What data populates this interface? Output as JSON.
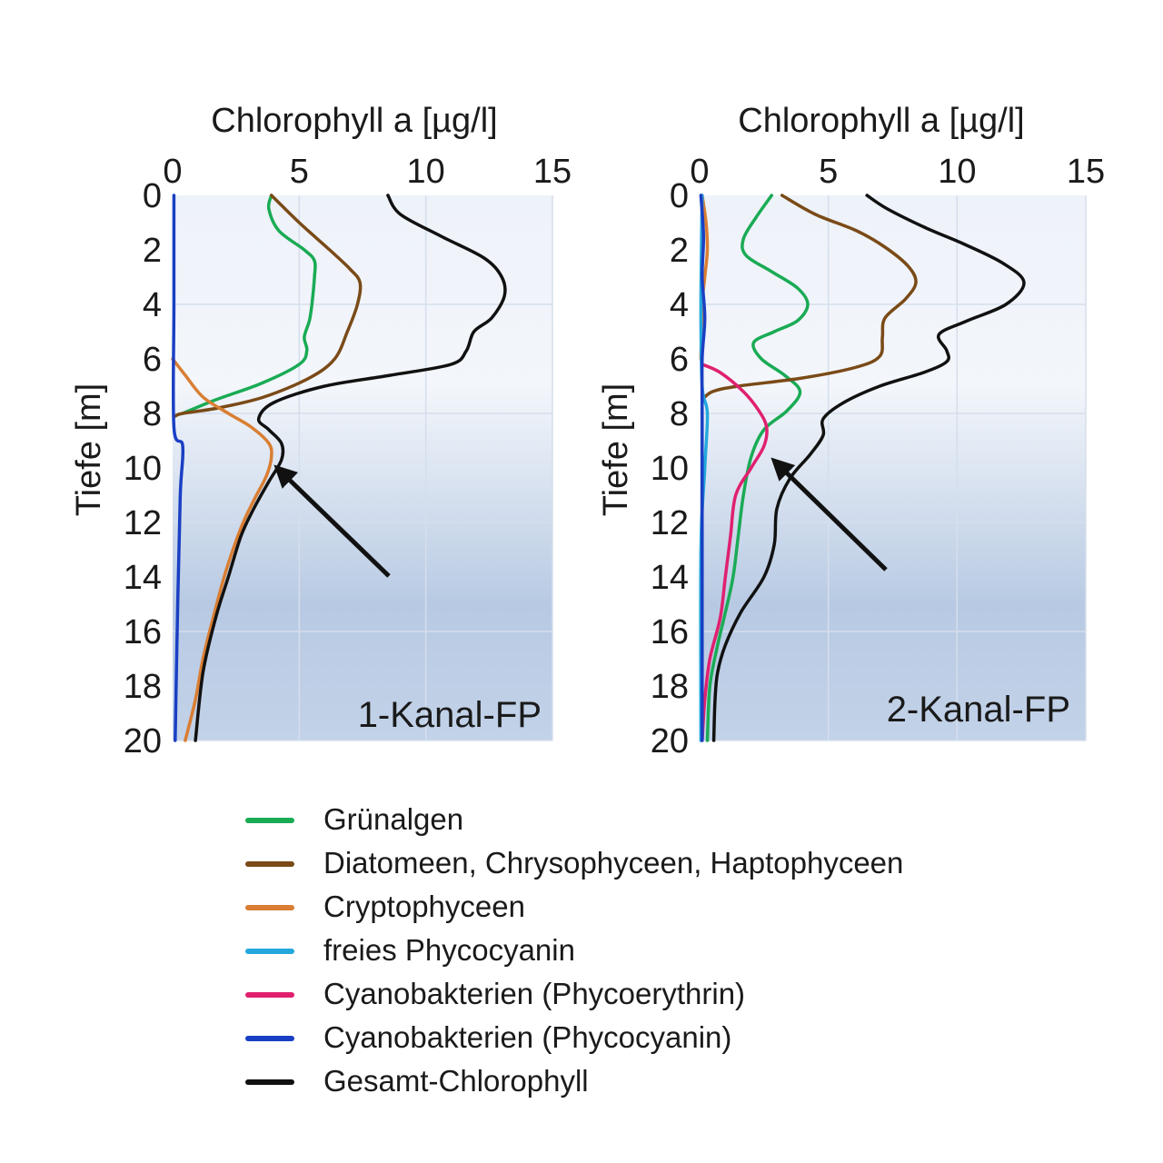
{
  "chart_data": [
    {
      "type": "line",
      "title": "",
      "xlabel": "Chlorophyll a [µg/l]",
      "ylabel": "Tiefe [m]",
      "xlim": [
        0,
        15
      ],
      "ylim": [
        20,
        0
      ],
      "xticks": [
        "0",
        "5",
        "10",
        "15"
      ],
      "yticks": [
        "0",
        "2",
        "4",
        "6",
        "8",
        "10",
        "12",
        "14",
        "16",
        "18",
        "20"
      ],
      "grid": true,
      "panel_label": "1-Kanal-FP",
      "annotation": "arrow pointing to the Cryptophyceen / Gesamt-Chlorophyll peak at about 10 m depth",
      "series": [
        {
          "name": "Grünalgen",
          "color": "#1aab55",
          "points": [
            [
              3.9,
              0
            ],
            [
              3.8,
              0.5
            ],
            [
              4.2,
              1.3
            ],
            [
              5.2,
              2
            ],
            [
              5.6,
              2.4
            ],
            [
              5.6,
              3
            ],
            [
              5.5,
              4
            ],
            [
              5.4,
              4.6
            ],
            [
              5.2,
              5.2
            ],
            [
              5.3,
              5.7
            ],
            [
              5.0,
              6.2
            ],
            [
              3.5,
              6.9
            ],
            [
              1.7,
              7.5
            ],
            [
              0.4,
              8.0
            ]
          ]
        },
        {
          "name": "Diatomeen, Chrysophyceen, Haptophyceen",
          "color": "#7a4a17",
          "points": [
            [
              3.9,
              0
            ],
            [
              5.0,
              1
            ],
            [
              6.2,
              2
            ],
            [
              7.0,
              2.7
            ],
            [
              7.4,
              3.2
            ],
            [
              7.3,
              4
            ],
            [
              6.9,
              5
            ],
            [
              6.4,
              6
            ],
            [
              5.4,
              6.7
            ],
            [
              3.6,
              7.4
            ],
            [
              1.8,
              7.8
            ],
            [
              0.4,
              8.0
            ],
            [
              0.1,
              8.1
            ]
          ]
        },
        {
          "name": "Cryptophyceen",
          "color": "#d97e33",
          "points": [
            [
              0,
              6.0
            ],
            [
              0.5,
              6.6
            ],
            [
              1.2,
              7.4
            ],
            [
              2.2,
              8.0
            ],
            [
              3.1,
              8.5
            ],
            [
              3.8,
              9.1
            ],
            [
              3.9,
              9.6
            ],
            [
              3.7,
              10.3
            ],
            [
              3.2,
              11.2
            ],
            [
              2.7,
              12.2
            ],
            [
              2.1,
              13.8
            ],
            [
              1.6,
              15.5
            ],
            [
              1.2,
              17
            ],
            [
              0.9,
              18.5
            ],
            [
              0.5,
              20
            ]
          ]
        },
        {
          "name": "Cyanobakterien (Phycocyanin)",
          "color": "#1a3fc4",
          "points": [
            [
              0.05,
              0
            ],
            [
              0.05,
              4
            ],
            [
              0.05,
              8.5
            ],
            [
              0.4,
              9.2
            ],
            [
              0.3,
              11
            ],
            [
              0.2,
              15
            ],
            [
              0.1,
              20
            ]
          ]
        },
        {
          "name": "Gesamt-Chlorophyll",
          "color": "#111111",
          "points": [
            [
              8.5,
              0
            ],
            [
              9.0,
              0.7
            ],
            [
              10.6,
              1.5
            ],
            [
              12.3,
              2.3
            ],
            [
              13.0,
              3.0
            ],
            [
              13.1,
              3.7
            ],
            [
              12.6,
              4.5
            ],
            [
              11.9,
              5.0
            ],
            [
              11.6,
              5.7
            ],
            [
              11.0,
              6.2
            ],
            [
              8.6,
              6.6
            ],
            [
              6.0,
              7.0
            ],
            [
              4.0,
              7.6
            ],
            [
              3.4,
              8.2
            ],
            [
              3.8,
              8.6
            ],
            [
              4.3,
              9.1
            ],
            [
              4.3,
              9.7
            ],
            [
              3.8,
              10.5
            ],
            [
              3.2,
              11.5
            ],
            [
              2.7,
              12.5
            ],
            [
              2.2,
              14
            ],
            [
              1.7,
              15.5
            ],
            [
              1.2,
              17.5
            ],
            [
              0.9,
              20
            ]
          ]
        }
      ]
    },
    {
      "type": "line",
      "title": "",
      "xlabel": "Chlorophyll a [µg/l]",
      "ylabel": "Tiefe [m]",
      "xlim": [
        0,
        15
      ],
      "ylim": [
        20,
        0
      ],
      "xticks": [
        "0",
        "5",
        "10",
        "15"
      ],
      "yticks": [
        "0",
        "2",
        "4",
        "6",
        "8",
        "10",
        "12",
        "14",
        "16",
        "18",
        "20"
      ],
      "grid": true,
      "panel_label": "2-Kanal-FP",
      "annotation": "arrow pointing to the Cyanobakterien (Phycoerythrin) peak at about 9 m depth",
      "series": [
        {
          "name": "Grünalgen",
          "color": "#1aab55",
          "points": [
            [
              2.8,
              0
            ],
            [
              2.2,
              0.8
            ],
            [
              1.7,
              1.6
            ],
            [
              1.8,
              2.2
            ],
            [
              2.8,
              2.8
            ],
            [
              3.8,
              3.4
            ],
            [
              4.2,
              4.0
            ],
            [
              3.8,
              4.6
            ],
            [
              2.9,
              5.0
            ],
            [
              2.1,
              5.4
            ],
            [
              2.4,
              6.0
            ],
            [
              3.3,
              6.6
            ],
            [
              3.9,
              7.2
            ],
            [
              3.4,
              7.9
            ],
            [
              2.5,
              8.6
            ],
            [
              2.0,
              9.6
            ],
            [
              1.7,
              11
            ],
            [
              1.5,
              12.5
            ],
            [
              1.3,
              14
            ],
            [
              1.0,
              15.3
            ],
            [
              0.7,
              16.5
            ],
            [
              0.4,
              18
            ],
            [
              0.3,
              20
            ]
          ]
        },
        {
          "name": "Diatomeen, Chrysophyceen, Haptophyceen",
          "color": "#7a4a17",
          "points": [
            [
              3.2,
              0
            ],
            [
              4.5,
              0.7
            ],
            [
              6.1,
              1.3
            ],
            [
              7.2,
              1.9
            ],
            [
              8.1,
              2.6
            ],
            [
              8.4,
              3.2
            ],
            [
              8.0,
              3.8
            ],
            [
              7.2,
              4.5
            ],
            [
              7.1,
              5.2
            ],
            [
              7.0,
              5.9
            ],
            [
              6.1,
              6.3
            ],
            [
              4.0,
              6.7
            ],
            [
              1.5,
              7.0
            ],
            [
              0.5,
              7.2
            ],
            [
              0.1,
              7.5
            ]
          ]
        },
        {
          "name": "Cryptophyceen",
          "color": "#d97e33",
          "points": [
            [
              0.1,
              0
            ],
            [
              0.25,
              1
            ],
            [
              0.3,
              2
            ],
            [
              0.2,
              3
            ],
            [
              0.1,
              4
            ],
            [
              0.05,
              6
            ]
          ]
        },
        {
          "name": "freies Phycocyanin",
          "color": "#24a8dc",
          "points": [
            [
              0.1,
              0
            ],
            [
              0.05,
              4
            ],
            [
              0.1,
              7
            ],
            [
              0.3,
              8
            ],
            [
              0.2,
              10
            ],
            [
              0.05,
              13
            ],
            [
              0.05,
              20
            ]
          ]
        },
        {
          "name": "Cyanobakterien (Phycoerythrin)",
          "color": "#e0206f",
          "points": [
            [
              0.1,
              6.2
            ],
            [
              0.8,
              6.5
            ],
            [
              1.7,
              7.2
            ],
            [
              2.3,
              7.9
            ],
            [
              2.6,
              8.5
            ],
            [
              2.5,
              9.2
            ],
            [
              2.0,
              10
            ],
            [
              1.4,
              11
            ],
            [
              1.2,
              12.5
            ],
            [
              1.0,
              14
            ],
            [
              0.8,
              15.5
            ],
            [
              0.4,
              17
            ],
            [
              0.2,
              18.5
            ],
            [
              0.1,
              20
            ]
          ]
        },
        {
          "name": "Cyanobakterien (Phycocyanin)",
          "color": "#1a3fc4",
          "points": [
            [
              0.05,
              0
            ],
            [
              0.15,
              1.5
            ],
            [
              0.1,
              3
            ],
            [
              0.2,
              4.5
            ],
            [
              0.1,
              6
            ],
            [
              0.1,
              8
            ],
            [
              0.1,
              11
            ],
            [
              0.1,
              14
            ],
            [
              0.1,
              17
            ],
            [
              0.1,
              20
            ]
          ]
        },
        {
          "name": "Gesamt-Chlorophyll",
          "color": "#111111",
          "points": [
            [
              6.5,
              0
            ],
            [
              7.3,
              0.5
            ],
            [
              8.8,
              1.2
            ],
            [
              10.3,
              1.8
            ],
            [
              11.8,
              2.5
            ],
            [
              12.6,
              3.2
            ],
            [
              11.9,
              4.0
            ],
            [
              10.4,
              4.6
            ],
            [
              9.3,
              5.1
            ],
            [
              9.6,
              5.7
            ],
            [
              9.6,
              6.1
            ],
            [
              8.7,
              6.5
            ],
            [
              7.0,
              7.0
            ],
            [
              5.6,
              7.6
            ],
            [
              4.8,
              8.2
            ],
            [
              4.8,
              8.8
            ],
            [
              4.3,
              9.5
            ],
            [
              3.5,
              10.4
            ],
            [
              3.0,
              11.5
            ],
            [
              2.9,
              12.8
            ],
            [
              2.5,
              14
            ],
            [
              1.6,
              15.3
            ],
            [
              1.0,
              16.5
            ],
            [
              0.7,
              17.5
            ],
            [
              0.6,
              18.5
            ],
            [
              0.55,
              20
            ]
          ]
        }
      ]
    }
  ],
  "legend": {
    "items": [
      {
        "label": "Grünalgen",
        "color": "#1aab55"
      },
      {
        "label": "Diatomeen, Chrysophyceen, Haptophyceen",
        "color": "#7a4a17"
      },
      {
        "label": "Cryptophyceen",
        "color": "#d97e33"
      },
      {
        "label": "freies Phycocyanin",
        "color": "#24a8dc"
      },
      {
        "label": "Cyanobakterien (Phycoerythrin)",
        "color": "#e0206f"
      },
      {
        "label": "Cyanobakterien (Phycocyanin)",
        "color": "#1a3fc4"
      },
      {
        "label": "Gesamt-Chlorophyll",
        "color": "#111111"
      }
    ]
  }
}
